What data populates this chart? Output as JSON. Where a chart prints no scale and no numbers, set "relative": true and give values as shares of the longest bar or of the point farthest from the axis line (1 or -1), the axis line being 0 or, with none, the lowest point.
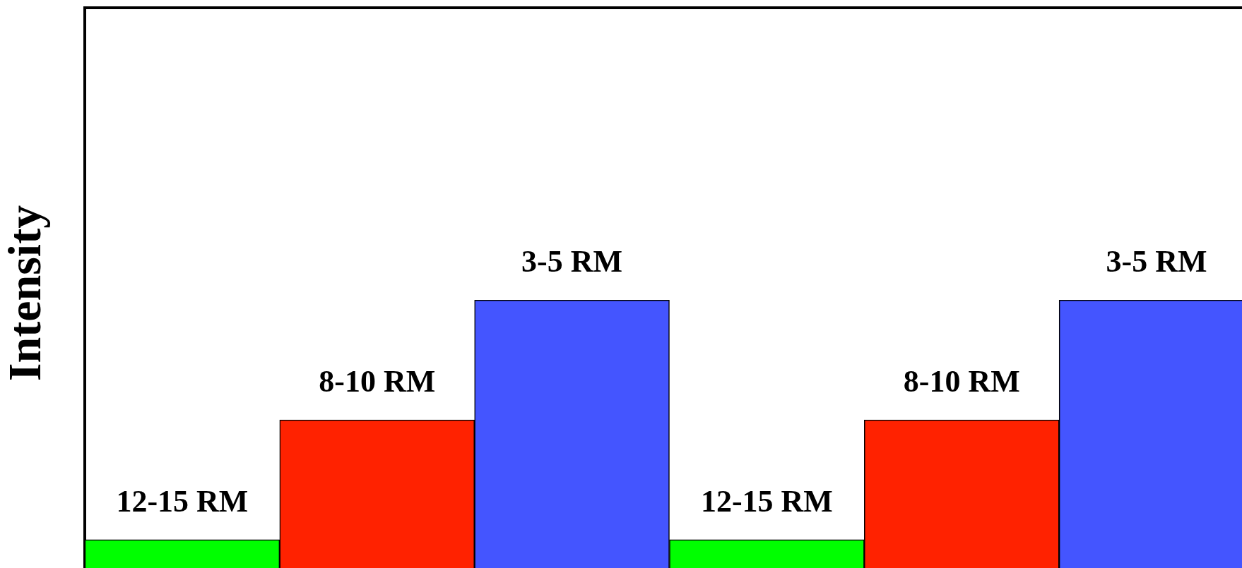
{
  "chart_data": {
    "type": "bar",
    "ylabel": "Intensity",
    "relative": true,
    "grid": false,
    "legend": false,
    "categories": [
      "12-15 RM",
      "8-10 RM",
      "3-5 RM",
      "12-15 RM",
      "8-10 RM",
      "3-5 RM"
    ],
    "values": [
      0.14,
      0.57,
      1,
      0.14,
      0.57,
      1
    ],
    "colors": [
      "#00ff00",
      "#ff2200",
      "#4455ff",
      "#00ff00",
      "#ff2200",
      "#4455ff"
    ]
  }
}
